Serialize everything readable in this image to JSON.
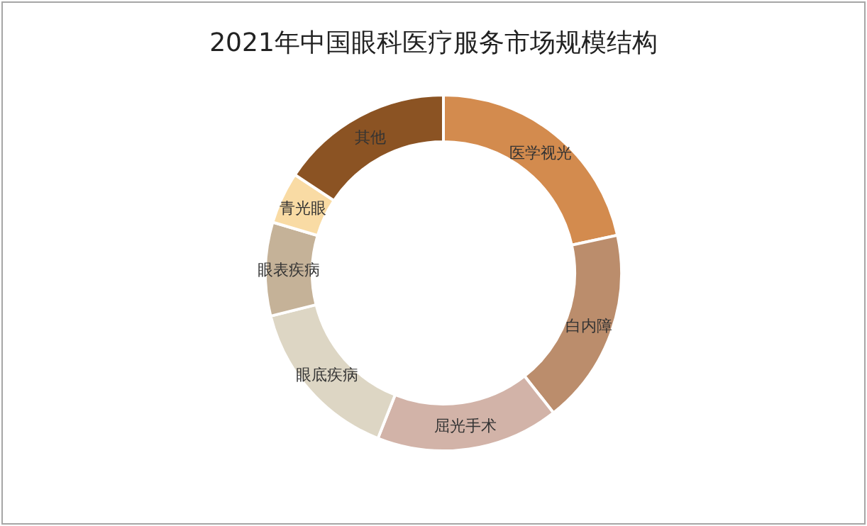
{
  "chart_data": {
    "type": "donut",
    "title": "2021年中国眼科医疗服务市场规模结构",
    "categories": [
      "医学视光",
      "白内障",
      "屈光手术",
      "眼底疾病",
      "眼表疾病",
      "青光眼",
      "其他"
    ],
    "values": [
      21.6,
      17.8,
      16.6,
      15.1,
      8.5,
      4.7,
      15.7
    ],
    "colors": [
      "#d38b4e",
      "#bb8d6c",
      "#d2b3a8",
      "#ddd6c4",
      "#c5b298",
      "#f9dba4",
      "#8b5323"
    ],
    "legend": false
  }
}
